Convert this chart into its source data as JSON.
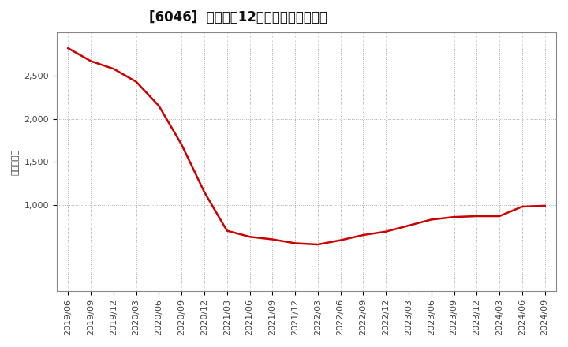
{
  "title": "[6046]  売上高の12か月移動合計の推移",
  "ylabel": "（百万円）",
  "line_color": "#cc0000",
  "background_color": "#ffffff",
  "plot_bg_color": "#ffffff",
  "grid_color": "#aaaaaa",
  "dates": [
    "2019/06",
    "2019/09",
    "2019/12",
    "2020/03",
    "2020/06",
    "2020/09",
    "2020/12",
    "2021/03",
    "2021/06",
    "2021/09",
    "2021/12",
    "2022/03",
    "2022/06",
    "2022/09",
    "2022/12",
    "2023/03",
    "2023/06",
    "2023/09",
    "2023/12",
    "2024/03",
    "2024/06",
    "2024/09"
  ],
  "values": [
    2820,
    2670,
    2580,
    2430,
    2150,
    1700,
    1150,
    700,
    630,
    600,
    555,
    540,
    590,
    650,
    690,
    760,
    830,
    860,
    870,
    870,
    980,
    990
  ],
  "ylim_min": 0,
  "ylim_max": 3000,
  "yticks": [
    1000,
    1500,
    2000,
    2500
  ],
  "ytick_labels": [
    "1,000",
    "1,500",
    "2,000",
    "2,500"
  ],
  "title_fontsize": 12,
  "tick_fontsize": 8,
  "ylabel_fontsize": 8
}
